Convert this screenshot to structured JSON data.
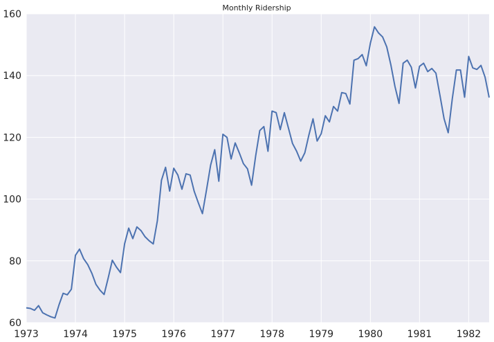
{
  "chart_data": {
    "type": "line",
    "title": "Monthly Ridership",
    "xlabel": "",
    "ylabel": "",
    "x_start": "1973-01",
    "x_frequency": "monthly",
    "xlim": [
      "1973-01",
      "1982-06"
    ],
    "ylim": [
      60,
      160
    ],
    "x_tick_labels": [
      "1973",
      "1974",
      "1975",
      "1976",
      "1977",
      "1978",
      "1979",
      "1980",
      "1981",
      "1982"
    ],
    "y_tick_labels": [
      "60",
      "80",
      "100",
      "120",
      "140",
      "160"
    ],
    "grid": true,
    "legend": "none",
    "colors": {
      "background": "#eaeaf2",
      "grid": "#ffffff",
      "line": "#4c72b0"
    },
    "series": [
      {
        "values": [
          64.8,
          64.6,
          64.0,
          65.5,
          63.2,
          62.5,
          61.9,
          61.5,
          65.8,
          69.5,
          69.0,
          70.8,
          81.8,
          83.8,
          80.7,
          78.8,
          76.0,
          72.4,
          70.5,
          69.1,
          74.5,
          80.2,
          78.0,
          76.2,
          85.5,
          90.6,
          87.2,
          91.0,
          89.8,
          87.8,
          86.5,
          85.5,
          93.0,
          106.1,
          110.3,
          102.6,
          110.0,
          107.8,
          103.2,
          108.2,
          107.8,
          102.5,
          98.8,
          95.3,
          103.0,
          111.0,
          116.0,
          105.8,
          121.0,
          120.0,
          113.0,
          118.2,
          115.0,
          111.5,
          109.8,
          104.5,
          114.0,
          122.2,
          123.5,
          115.5,
          128.5,
          128.0,
          122.5,
          128.0,
          123.0,
          118.0,
          115.5,
          112.3,
          115.0,
          120.8,
          126.0,
          118.8,
          121.2,
          127.0,
          125.0,
          130.0,
          128.5,
          134.5,
          134.2,
          130.8,
          145.0,
          145.5,
          146.8,
          143.2,
          150.5,
          155.8,
          153.8,
          152.5,
          149.3,
          143.5,
          136.5,
          131.0,
          144.0,
          145.0,
          142.7,
          136.0,
          143.0,
          144.0,
          141.3,
          142.3,
          140.8,
          133.5,
          126.0,
          121.5,
          132.5,
          141.8,
          141.8,
          133.0,
          146.2,
          142.5,
          142.0,
          143.3,
          139.5,
          132.9
        ]
      }
    ]
  }
}
